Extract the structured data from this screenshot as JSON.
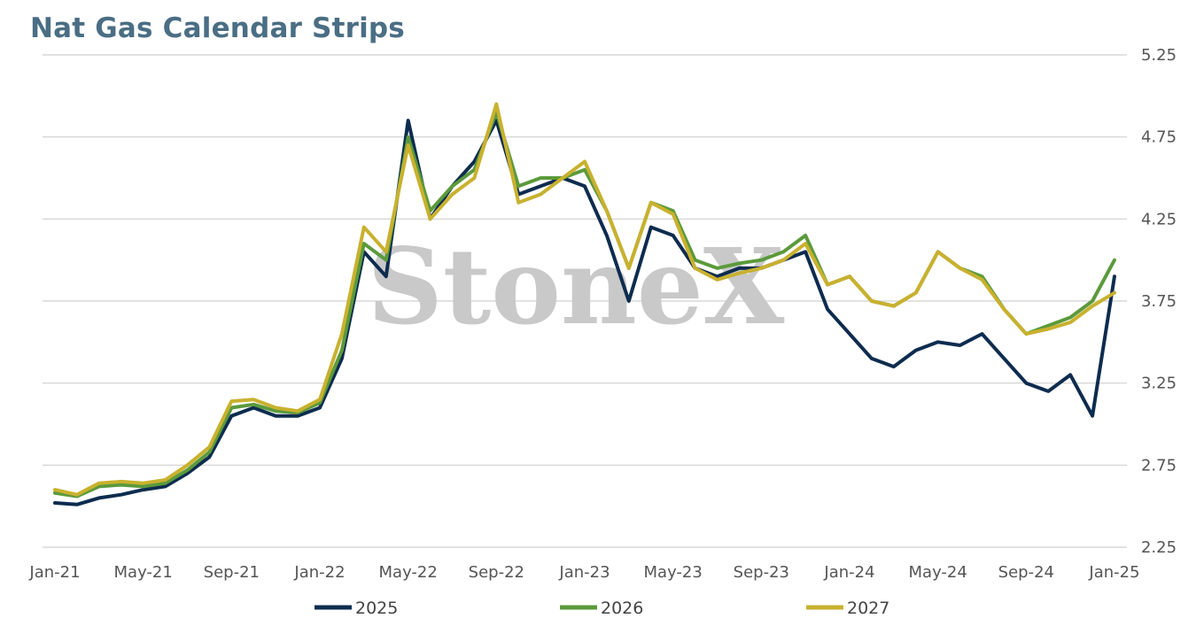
{
  "chart_data": {
    "type": "line",
    "title": "Nat Gas Calendar Strips",
    "watermark": "StoneX",
    "xlabel": "",
    "ylabel": "",
    "x_ticks": [
      "Jan-21",
      "May-21",
      "Sep-21",
      "Jan-22",
      "May-22",
      "Sep-22",
      "Jan-23",
      "May-23",
      "Sep-23",
      "Jan-24",
      "May-24",
      "Sep-24",
      "Jan-25"
    ],
    "x_range": [
      "2021-01",
      "2025-01"
    ],
    "y_ticks": [
      "2.25",
      "2.75",
      "3.25",
      "3.75",
      "4.25",
      "4.75",
      "5.25"
    ],
    "ylim": [
      2.25,
      5.25
    ],
    "grid": "horizontal",
    "legend_position": "bottom",
    "x": [
      "2021-01",
      "2021-02",
      "2021-03",
      "2021-04",
      "2021-05",
      "2021-06",
      "2021-07",
      "2021-08",
      "2021-09",
      "2021-10",
      "2021-11",
      "2021-12",
      "2022-01",
      "2022-02",
      "2022-03",
      "2022-04",
      "2022-05",
      "2022-06",
      "2022-07",
      "2022-08",
      "2022-09",
      "2022-10",
      "2022-11",
      "2022-12",
      "2023-01",
      "2023-02",
      "2023-03",
      "2023-04",
      "2023-05",
      "2023-06",
      "2023-07",
      "2023-08",
      "2023-09",
      "2023-10",
      "2023-11",
      "2023-12",
      "2024-01",
      "2024-02",
      "2024-03",
      "2024-04",
      "2024-05",
      "2024-06",
      "2024-07",
      "2024-08",
      "2024-09",
      "2024-10",
      "2024-11",
      "2024-12",
      "2025-01"
    ],
    "series": [
      {
        "name": "2025",
        "color": "#0d2c4f",
        "values": [
          2.52,
          2.51,
          2.55,
          2.57,
          2.6,
          2.62,
          2.7,
          2.8,
          3.05,
          3.1,
          3.05,
          3.05,
          3.1,
          3.4,
          4.05,
          3.9,
          4.85,
          4.25,
          4.45,
          4.6,
          4.85,
          4.4,
          4.45,
          4.5,
          4.45,
          4.15,
          3.75,
          4.2,
          4.15,
          3.95,
          3.9,
          3.95,
          3.95,
          4.0,
          4.05,
          3.7,
          3.55,
          3.4,
          3.35,
          3.45,
          3.5,
          3.48,
          3.55,
          3.4,
          3.25,
          3.2,
          3.3,
          3.05,
          3.9
        ]
      },
      {
        "name": "2026",
        "color": "#5b9a3c",
        "values": [
          2.58,
          2.56,
          2.62,
          2.63,
          2.62,
          2.64,
          2.72,
          2.83,
          3.1,
          3.12,
          3.08,
          3.07,
          3.13,
          3.45,
          4.1,
          4.0,
          4.75,
          4.3,
          4.45,
          4.55,
          4.9,
          4.45,
          4.5,
          4.5,
          4.55,
          4.3,
          3.95,
          4.35,
          4.3,
          4.0,
          3.95,
          3.98,
          4.0,
          4.05,
          4.15,
          3.85,
          3.9,
          3.75,
          3.72,
          3.8,
          4.05,
          3.95,
          3.9,
          3.7,
          3.55,
          3.6,
          3.65,
          3.75,
          4.0
        ]
      },
      {
        "name": "2027",
        "color": "#c9b12e",
        "values": [
          2.6,
          2.57,
          2.64,
          2.65,
          2.64,
          2.66,
          2.75,
          2.86,
          3.14,
          3.15,
          3.1,
          3.08,
          3.15,
          3.55,
          4.2,
          4.05,
          4.7,
          4.25,
          4.4,
          4.5,
          4.95,
          4.35,
          4.4,
          4.5,
          4.6,
          4.3,
          3.95,
          4.35,
          4.28,
          3.95,
          3.88,
          3.92,
          3.95,
          4.0,
          4.1,
          3.85,
          3.9,
          3.75,
          3.72,
          3.8,
          4.05,
          3.95,
          3.88,
          3.7,
          3.55,
          3.58,
          3.62,
          3.72,
          3.8
        ]
      }
    ]
  }
}
